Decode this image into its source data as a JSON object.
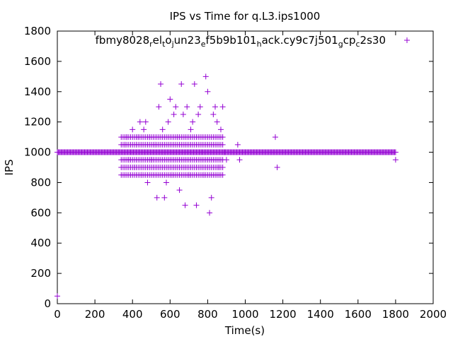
{
  "chart_data": {
    "type": "scatter",
    "title": "IPS vs Time for q.L3.ips1000",
    "xlabel": "Time(s)",
    "ylabel": "IPS",
    "xlim": [
      0,
      2000
    ],
    "ylim": [
      0,
      1800
    ],
    "xticks": [
      0,
      200,
      400,
      600,
      800,
      1000,
      1200,
      1400,
      1600,
      1800,
      2000
    ],
    "yticks": [
      0,
      200,
      400,
      600,
      800,
      1000,
      1200,
      1400,
      1600,
      1800
    ],
    "grid": false,
    "legend_position": "top-right",
    "colors": {
      "series": "#9400d3",
      "axis": "#000000"
    },
    "series": [
      {
        "name": "fbmy8028_rel_to_jun23_ef5b9b101_hack.cy9c7j501_gcp_c2s30",
        "marker": "plus",
        "baseline": {
          "y": 1000,
          "x_start": 0,
          "x_end": 1800
        },
        "points": [
          [
            0,
            50
          ],
          [
            360,
            1050
          ],
          [
            370,
            1100
          ],
          [
            380,
            950
          ],
          [
            390,
            1000
          ],
          [
            400,
            1150
          ],
          [
            410,
            900
          ],
          [
            420,
            1050
          ],
          [
            430,
            1100
          ],
          [
            440,
            1200
          ],
          [
            450,
            850
          ],
          [
            460,
            1150
          ],
          [
            470,
            1200
          ],
          [
            480,
            800
          ],
          [
            490,
            1100
          ],
          [
            500,
            950
          ],
          [
            520,
            1050
          ],
          [
            530,
            700
          ],
          [
            540,
            1300
          ],
          [
            550,
            1450
          ],
          [
            560,
            1150
          ],
          [
            570,
            700
          ],
          [
            580,
            800
          ],
          [
            590,
            1200
          ],
          [
            600,
            1350
          ],
          [
            610,
            850
          ],
          [
            620,
            1250
          ],
          [
            630,
            1300
          ],
          [
            640,
            1100
          ],
          [
            650,
            750
          ],
          [
            660,
            1450
          ],
          [
            670,
            1250
          ],
          [
            680,
            650
          ],
          [
            690,
            1300
          ],
          [
            700,
            850
          ],
          [
            710,
            1150
          ],
          [
            720,
            1200
          ],
          [
            730,
            1450
          ],
          [
            740,
            650
          ],
          [
            750,
            1250
          ],
          [
            760,
            1300
          ],
          [
            770,
            1000
          ],
          [
            780,
            850
          ],
          [
            790,
            1500
          ],
          [
            800,
            1400
          ],
          [
            810,
            600
          ],
          [
            820,
            700
          ],
          [
            830,
            1250
          ],
          [
            840,
            1300
          ],
          [
            850,
            1200
          ],
          [
            860,
            900
          ],
          [
            870,
            1150
          ],
          [
            880,
            1300
          ],
          [
            890,
            1000
          ],
          [
            900,
            950
          ],
          [
            960,
            1050
          ],
          [
            970,
            950
          ],
          [
            1160,
            1100
          ],
          [
            1170,
            900
          ],
          [
            1800,
            950
          ]
        ],
        "cluster_levels": [
          850,
          900,
          950,
          1050,
          1100
        ],
        "cluster_x_range": [
          340,
          880
        ]
      }
    ]
  }
}
